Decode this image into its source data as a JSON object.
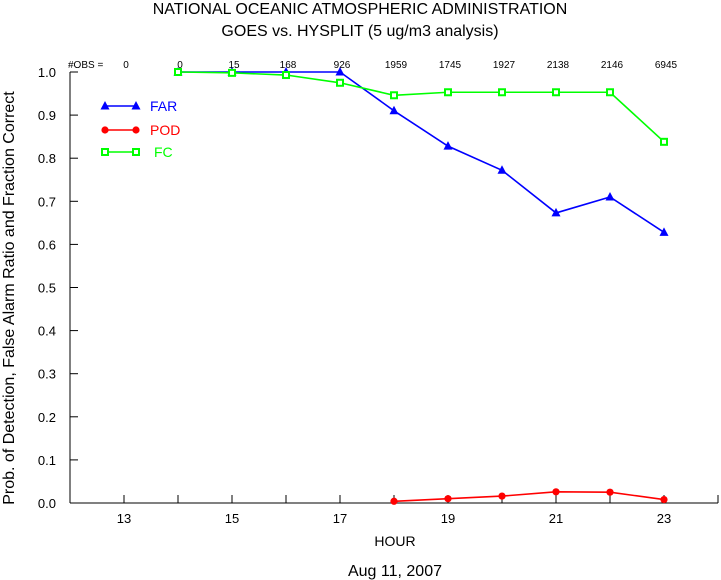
{
  "chart_data": {
    "type": "line",
    "title": "NATIONAL OCEANIC ATMOSPHERIC ADMINISTRATION",
    "subtitle": "GOES vs. HYSPLIT  (5 ug/m3 analysis)",
    "xlabel": "HOUR",
    "ylabel": "Prob. of Detection, False Alarm Ratio and Fraction Correct",
    "date_label": "Aug 11, 2007",
    "xlim": [
      12,
      24
    ],
    "ylim": [
      0,
      1.0
    ],
    "x_ticks": [
      13,
      15,
      17,
      19,
      21,
      23
    ],
    "y_ticks": [
      "0.0",
      "0.1",
      "0.2",
      "0.3",
      "0.4",
      "0.5",
      "0.6",
      "0.7",
      "0.8",
      "0.9",
      "1.0"
    ],
    "obs_label": "#OBS =",
    "obs": [
      {
        "x": 13,
        "n": "0"
      },
      {
        "x": 14,
        "n": "0"
      },
      {
        "x": 15,
        "n": "15"
      },
      {
        "x": 16,
        "n": "168"
      },
      {
        "x": 17,
        "n": "926"
      },
      {
        "x": 18,
        "n": "1959"
      },
      {
        "x": 19,
        "n": "1745"
      },
      {
        "x": 20,
        "n": "1927"
      },
      {
        "x": 21,
        "n": "2138"
      },
      {
        "x": 22,
        "n": "2146"
      },
      {
        "x": 23,
        "n": "6945"
      }
    ],
    "grid": false,
    "legend_position": "top-left",
    "series": [
      {
        "name": "FAR",
        "color": "#0000ff",
        "marker": "triangle",
        "points": [
          [
            14,
            1.0
          ],
          [
            15,
            1.0
          ],
          [
            16,
            1.0
          ],
          [
            17,
            1.0
          ],
          [
            18,
            0.91
          ],
          [
            19,
            0.828
          ],
          [
            20,
            0.772
          ],
          [
            21,
            0.673
          ],
          [
            22,
            0.71
          ],
          [
            23,
            0.628
          ]
        ]
      },
      {
        "name": "POD",
        "color": "#ff0000",
        "marker": "circle",
        "points": [
          [
            18,
            0.004
          ],
          [
            19,
            0.01
          ],
          [
            20,
            0.016
          ],
          [
            21,
            0.026
          ],
          [
            22,
            0.025
          ],
          [
            23,
            0.008
          ]
        ]
      },
      {
        "name": "FC",
        "color": "#00ff00",
        "marker": "square",
        "points": [
          [
            14,
            1.0
          ],
          [
            15,
            0.998
          ],
          [
            16,
            0.993
          ],
          [
            17,
            0.975
          ],
          [
            18,
            0.946
          ],
          [
            19,
            0.953
          ],
          [
            20,
            0.953
          ],
          [
            21,
            0.953
          ],
          [
            22,
            0.953
          ],
          [
            23,
            0.838
          ]
        ]
      }
    ]
  }
}
